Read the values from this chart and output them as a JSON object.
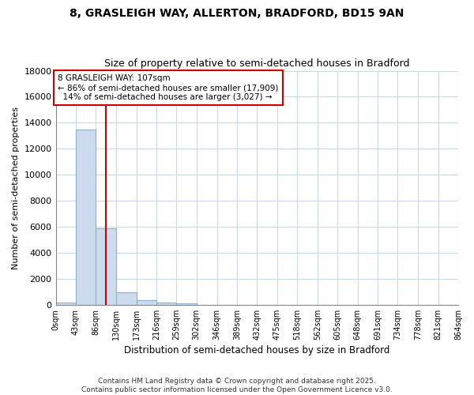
{
  "title_line1": "8, GRASLEIGH WAY, ALLERTON, BRADFORD, BD15 9AN",
  "title_line2": "Size of property relative to semi-detached houses in Bradford",
  "xlabel": "Distribution of semi-detached houses by size in Bradford",
  "ylabel": "Number of semi-detached properties",
  "bin_edges": [
    0,
    43,
    86,
    130,
    173,
    216,
    259,
    302,
    346,
    389,
    432,
    475,
    518,
    562,
    605,
    648,
    691,
    734,
    778,
    821,
    864
  ],
  "bin_labels": [
    "0sqm",
    "43sqm",
    "86sqm",
    "130sqm",
    "173sqm",
    "216sqm",
    "259sqm",
    "302sqm",
    "346sqm",
    "389sqm",
    "432sqm",
    "475sqm",
    "518sqm",
    "562sqm",
    "605sqm",
    "648sqm",
    "691sqm",
    "734sqm",
    "778sqm",
    "821sqm",
    "864sqm"
  ],
  "bar_heights": [
    200,
    13500,
    5900,
    950,
    330,
    170,
    90,
    0,
    0,
    0,
    0,
    0,
    0,
    0,
    0,
    0,
    0,
    0,
    0,
    0
  ],
  "bar_color": "#ccdcee",
  "bar_edge_color": "#8ab0cc",
  "ylim": [
    0,
    18000
  ],
  "property_size": 107,
  "property_line_color": "#cc0000",
  "annotation_line1": "8 GRASLEIGH WAY: 107sqm",
  "annotation_line2": "← 86% of semi-detached houses are smaller (17,909)",
  "annotation_line3": "  14% of semi-detached houses are larger (3,027) →",
  "annotation_box_color": "#ffffff",
  "annotation_edge_color": "#cc0000",
  "footer_line1": "Contains HM Land Registry data © Crown copyright and database right 2025.",
  "footer_line2": "Contains public sector information licensed under the Open Government Licence v3.0.",
  "background_color": "#ffffff",
  "plot_bg_color": "#ffffff",
  "grid_color": "#c8d8ee",
  "yticks": [
    0,
    2000,
    4000,
    6000,
    8000,
    10000,
    12000,
    14000,
    16000,
    18000
  ],
  "ytick_labels": [
    "0",
    "2000",
    "4000",
    "6000",
    "8000",
    "10000",
    "12000",
    "14000",
    "16000",
    "18000"
  ]
}
